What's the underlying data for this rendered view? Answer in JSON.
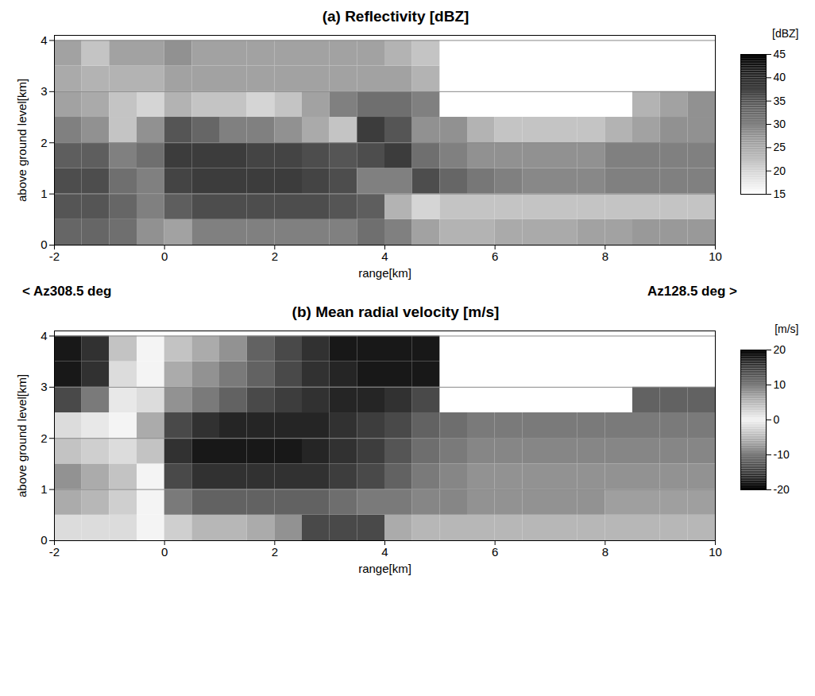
{
  "chart_data": [
    {
      "type": "heatmap",
      "title": "(a) Reflectivity [dBZ]",
      "x_label": "range[km]",
      "y_label": "above ground level[km]",
      "xlim": [
        -2,
        10
      ],
      "xticks": [
        -2,
        0,
        2,
        4,
        6,
        8,
        10
      ],
      "ylim": [
        0,
        4.1
      ],
      "yticks": [
        0,
        1,
        2,
        3,
        4
      ],
      "grid": true,
      "annotations": [
        "< Az308.5 deg",
        "Az128.5 deg >"
      ],
      "x_bins": [
        -2,
        -1.5,
        -1,
        -0.5,
        0,
        0.5,
        1,
        1.5,
        2,
        2.5,
        3,
        3.5,
        4,
        4.5,
        5,
        5.5,
        6,
        6.5,
        7,
        7.5,
        8,
        8.5,
        9,
        9.5,
        10
      ],
      "y_bins": [
        0,
        0.5,
        1,
        1.5,
        2,
        2.5,
        3,
        3.5,
        4
      ],
      "values": [
        [
          33,
          33,
          32,
          28,
          26,
          30,
          30,
          30,
          30,
          30,
          30,
          32,
          30,
          26,
          24,
          24,
          25,
          25,
          25,
          26,
          26,
          27,
          27,
          27
        ],
        [
          35,
          35,
          33,
          30,
          34,
          36,
          36,
          36,
          36,
          36,
          35,
          34,
          24,
          20,
          22,
          22,
          22,
          22,
          22,
          22,
          22,
          22,
          22,
          22
        ],
        [
          36,
          36,
          32,
          30,
          37,
          38,
          38,
          38,
          38,
          37,
          36,
          30,
          30,
          36,
          33,
          31,
          30,
          29,
          29,
          29,
          30,
          30,
          30,
          30
        ],
        [
          34,
          34,
          30,
          32,
          38,
          38,
          38,
          37,
          37,
          36,
          35,
          36,
          38,
          32,
          30,
          28,
          28,
          28,
          28,
          28,
          30,
          30,
          30,
          30
        ],
        [
          30,
          28,
          22,
          28,
          35,
          33,
          30,
          30,
          28,
          25,
          22,
          38,
          35,
          28,
          28,
          24,
          22,
          22,
          22,
          22,
          24,
          26,
          28,
          28
        ],
        [
          26,
          25,
          22,
          20,
          24,
          22,
          22,
          20,
          22,
          26,
          30,
          32,
          32,
          30,
          null,
          null,
          null,
          null,
          null,
          null,
          null,
          24,
          26,
          28
        ],
        [
          25,
          24,
          24,
          24,
          26,
          26,
          26,
          26,
          26,
          26,
          26,
          26,
          26,
          24,
          null,
          null,
          null,
          null,
          null,
          null,
          null,
          null,
          null,
          null
        ],
        [
          26,
          22,
          26,
          26,
          28,
          26,
          26,
          26,
          26,
          26,
          26,
          26,
          24,
          22,
          null,
          null,
          null,
          null,
          null,
          null,
          null,
          null,
          null,
          null
        ]
      ],
      "colorbar": {
        "label": "[dBZ]",
        "range": [
          15,
          45
        ],
        "ticks": [
          15,
          20,
          25,
          30,
          35,
          40,
          45
        ]
      }
    },
    {
      "type": "heatmap",
      "title": "(b) Mean radial velocity [m/s]",
      "x_label": "range[km]",
      "y_label": "above ground level[km]",
      "xlim": [
        -2,
        10
      ],
      "xticks": [
        -2,
        0,
        2,
        4,
        6,
        8,
        10
      ],
      "ylim": [
        0,
        4.1
      ],
      "yticks": [
        0,
        1,
        2,
        3,
        4
      ],
      "grid": true,
      "x_bins": [
        -2,
        -1.5,
        -1,
        -0.5,
        0,
        0.5,
        1,
        1.5,
        2,
        2.5,
        3,
        3.5,
        4,
        4.5,
        5,
        5.5,
        6,
        6.5,
        7,
        7.5,
        8,
        8.5,
        9,
        9.5,
        10
      ],
      "y_bins": [
        0,
        0.5,
        1,
        1.5,
        2,
        2.5,
        3,
        3.5,
        4
      ],
      "values": [
        [
          2,
          2,
          2,
          0,
          -3,
          -5,
          -5,
          -6,
          -8,
          -14,
          -14,
          -14,
          -6,
          -5,
          -5,
          -5,
          -5,
          -5,
          -5,
          -5,
          -5,
          -5,
          -5,
          -5
        ],
        [
          6,
          5,
          3,
          0,
          -10,
          -12,
          -12,
          -12,
          -12,
          -12,
          -11,
          -10,
          -10,
          -9,
          -9,
          -8,
          -8,
          -8,
          -8,
          -8,
          -7,
          -7,
          -7,
          -7
        ],
        [
          8,
          6,
          4,
          0,
          -14,
          -16,
          -16,
          -16,
          -16,
          -16,
          -15,
          -14,
          -12,
          -10,
          -9,
          -8,
          -8,
          -8,
          -8,
          -8,
          -8,
          -8,
          -8,
          -8
        ],
        [
          4,
          3,
          2,
          -4,
          -16,
          -18,
          -18,
          -18,
          -18,
          -17,
          -16,
          -15,
          -13,
          -11,
          -10,
          -9,
          -9,
          -9,
          -9,
          -9,
          -9,
          -9,
          -9,
          -9
        ],
        [
          2,
          1,
          0,
          -6,
          -14,
          -16,
          -17,
          -17,
          -17,
          -17,
          -16,
          -15,
          -14,
          -12,
          -11,
          -10,
          -10,
          -10,
          -10,
          -10,
          -10,
          -10,
          -10,
          -10
        ],
        [
          14,
          10,
          1,
          -2,
          -8,
          -10,
          -12,
          -14,
          -15,
          -16,
          -17,
          -17,
          -16,
          -14,
          null,
          null,
          null,
          null,
          null,
          null,
          null,
          -12,
          -12,
          -12
        ],
        [
          18,
          16,
          2,
          0,
          -6,
          -8,
          -10,
          -12,
          -14,
          -16,
          -17,
          -18,
          -18,
          -18,
          null,
          null,
          null,
          null,
          null,
          null,
          null,
          null,
          null,
          null
        ],
        [
          18,
          16,
          4,
          0,
          -4,
          -6,
          -8,
          -12,
          -14,
          -16,
          -18,
          -18,
          -18,
          -18,
          null,
          null,
          null,
          null,
          null,
          null,
          null,
          null,
          null,
          null
        ]
      ],
      "colorbar": {
        "label": "[m/s]",
        "range": [
          -20,
          20
        ],
        "ticks": [
          -20,
          -10,
          0,
          10,
          20
        ]
      }
    }
  ]
}
